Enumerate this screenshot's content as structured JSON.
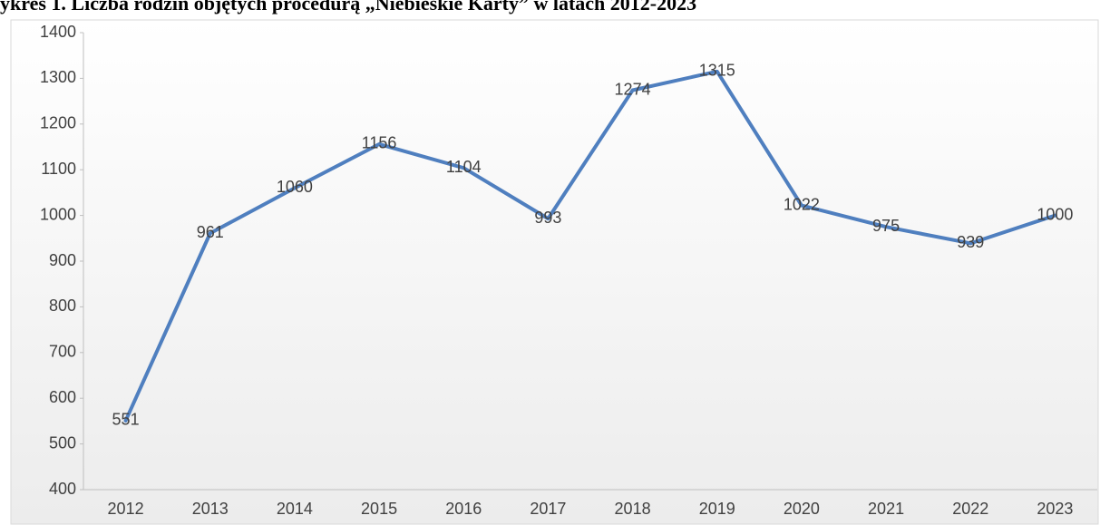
{
  "chart_data": {
    "type": "line",
    "title": "ykres 1. Liczba rodzin objętych procedurą „Niebieskie Karty” w latach 2012-2023",
    "categories": [
      "2012",
      "2013",
      "2014",
      "2015",
      "2016",
      "2017",
      "2018",
      "2019",
      "2020",
      "2021",
      "2022",
      "2023"
    ],
    "series": [
      {
        "name": "Liczba rodzin",
        "color": "#4f7fbf",
        "values": [
          551,
          961,
          1060,
          1156,
          1104,
          993,
          1274,
          1315,
          1022,
          975,
          939,
          1000
        ]
      }
    ],
    "ylim": [
      400,
      1400
    ],
    "yticks": [
      400,
      500,
      600,
      700,
      800,
      900,
      1000,
      1100,
      1200,
      1300,
      1400
    ],
    "grid": false
  }
}
